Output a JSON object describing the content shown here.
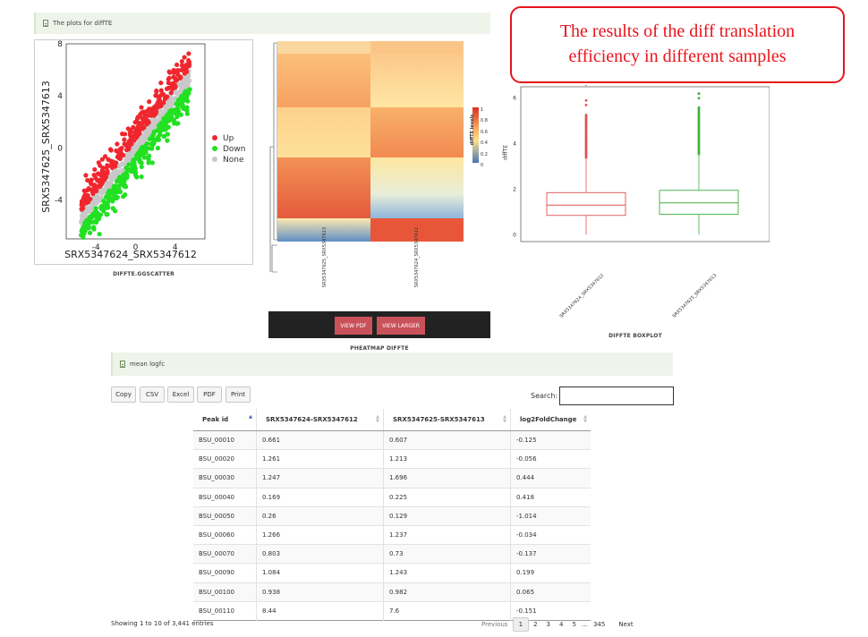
{
  "plots_panel": {
    "title": "The plots for diffTE"
  },
  "callout": {
    "line1": "The results of the diff translation",
    "line2": "efficiency in different samples"
  },
  "scatter": {
    "caption": "DIFFTE.GGSCATTER",
    "xlabel": "SRX5347624_SRX5347612",
    "ylabel": "SRX5347625_SRX5347613",
    "x_ticks": [
      "-4",
      "0",
      "4"
    ],
    "y_ticks": [
      "8",
      "4",
      "0",
      "-4"
    ],
    "legend": [
      {
        "label": "Up",
        "color": "#f0262e"
      },
      {
        "label": "Down",
        "color": "#22e022"
      },
      {
        "label": "None",
        "color": "#c8c8c8"
      }
    ]
  },
  "heatmap": {
    "caption": "PHEATMAP DIFFTE",
    "legend_title": "diffTE levels",
    "legend_ticks": [
      "1",
      "0.8",
      "0.6",
      "0.4",
      "0.2",
      "0"
    ],
    "col_labels": [
      "SRX5347625_SRX5347613",
      "SRX5347624_SRX5347612"
    ],
    "view_pdf": "VIEW PDF",
    "view_larger": "VIEW LARGER"
  },
  "boxplot": {
    "caption": "DIFFTE BOXPLOT",
    "ylabel": "diffTE",
    "y_ticks": [
      "6",
      "4",
      "2",
      "0"
    ],
    "categories": [
      "SRX5347624_SRX5347612",
      "SRX5347625_SRX5347613"
    ],
    "colors": [
      "#e05050",
      "#40b040"
    ]
  },
  "table_panel": {
    "title": "mean logfc"
  },
  "toolbar": {
    "copy": "Copy",
    "csv": "CSV",
    "excel": "Excel",
    "pdf": "PDF",
    "print": "Print"
  },
  "search": {
    "label": "Search:",
    "value": ""
  },
  "table": {
    "headers": [
      "Peak id",
      "SRX5347624-SRX5347612",
      "SRX5347625-SRX5347613",
      "log2FoldChange"
    ],
    "rows": [
      [
        "BSU_00010",
        "0.661",
        "0.607",
        "-0.125"
      ],
      [
        "BSU_00020",
        "1.261",
        "1.213",
        "-0.056"
      ],
      [
        "BSU_00030",
        "1.247",
        "1.696",
        "0.444"
      ],
      [
        "BSU_00040",
        "0.169",
        "0.225",
        "0.418"
      ],
      [
        "BSU_00050",
        "0.26",
        "0.129",
        "-1.014"
      ],
      [
        "BSU_00060",
        "1.266",
        "1.237",
        "-0.034"
      ],
      [
        "BSU_00070",
        "0.803",
        "0.73",
        "-0.137"
      ],
      [
        "BSU_00090",
        "1.084",
        "1.243",
        "0.199"
      ],
      [
        "BSU_00100",
        "0.938",
        "0.982",
        "0.065"
      ],
      [
        "BSU_00110",
        "8.44",
        "7.6",
        "-0.151"
      ]
    ]
  },
  "footer": {
    "info": "Showing 1 to 10 of 3,441 entries",
    "previous": "Previous",
    "pages": [
      "1",
      "2",
      "3",
      "4",
      "5"
    ],
    "ellipsis": "…",
    "last_page": "345",
    "next": "Next"
  }
}
